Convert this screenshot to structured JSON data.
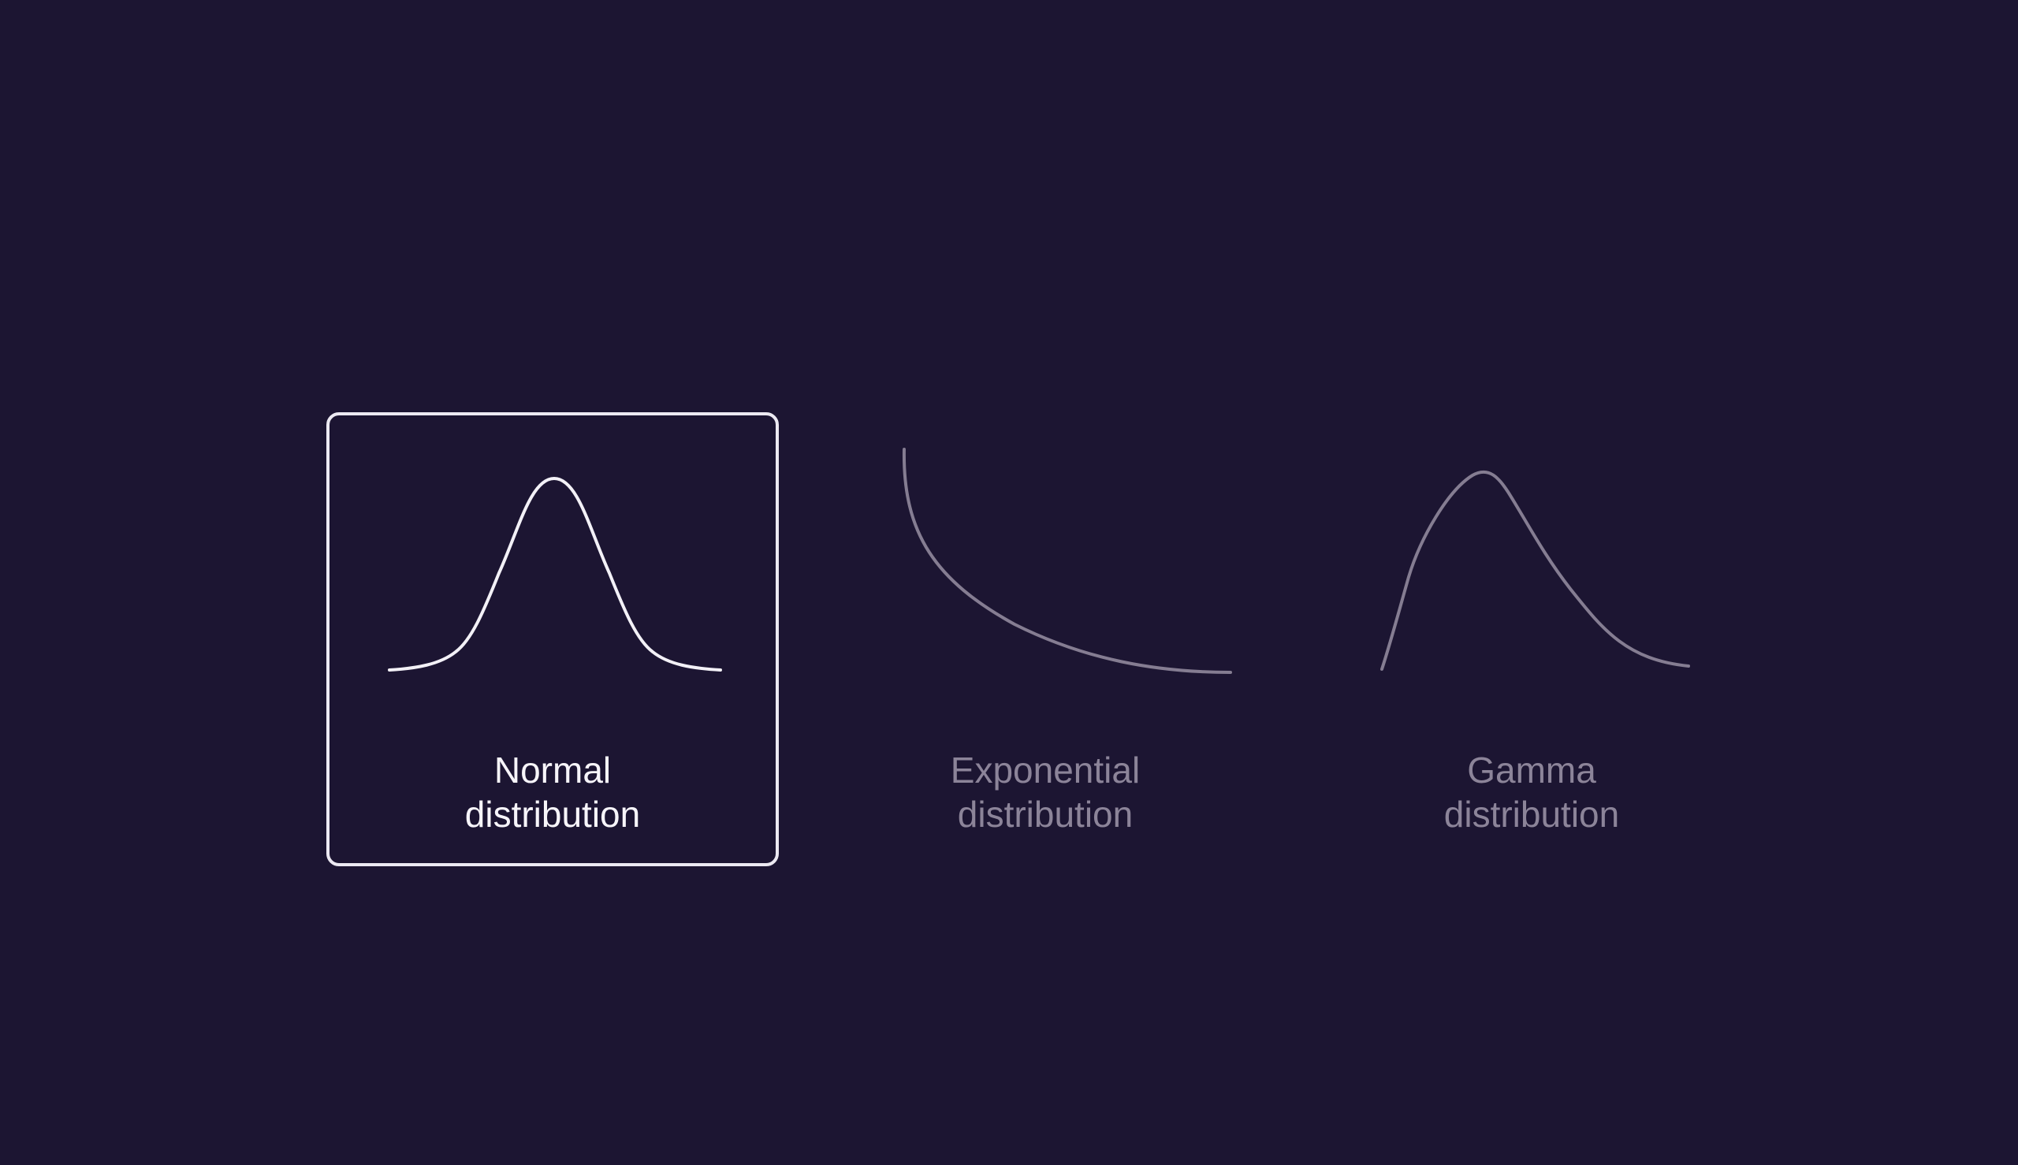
{
  "options": [
    {
      "id": "normal",
      "line1": "Normal",
      "line2": "distribution",
      "icon": "normal-distribution-curve-icon",
      "selected": true
    },
    {
      "id": "exponential",
      "line1": "Exponential",
      "line2": "distribution",
      "icon": "exponential-distribution-curve-icon",
      "selected": false
    },
    {
      "id": "gamma",
      "line1": "Gamma",
      "line2": "distribution",
      "icon": "gamma-distribution-curve-icon",
      "selected": false
    }
  ],
  "colors": {
    "background": "#1c1532",
    "selected": "#f3f1f7",
    "unselected": "#857d92"
  }
}
